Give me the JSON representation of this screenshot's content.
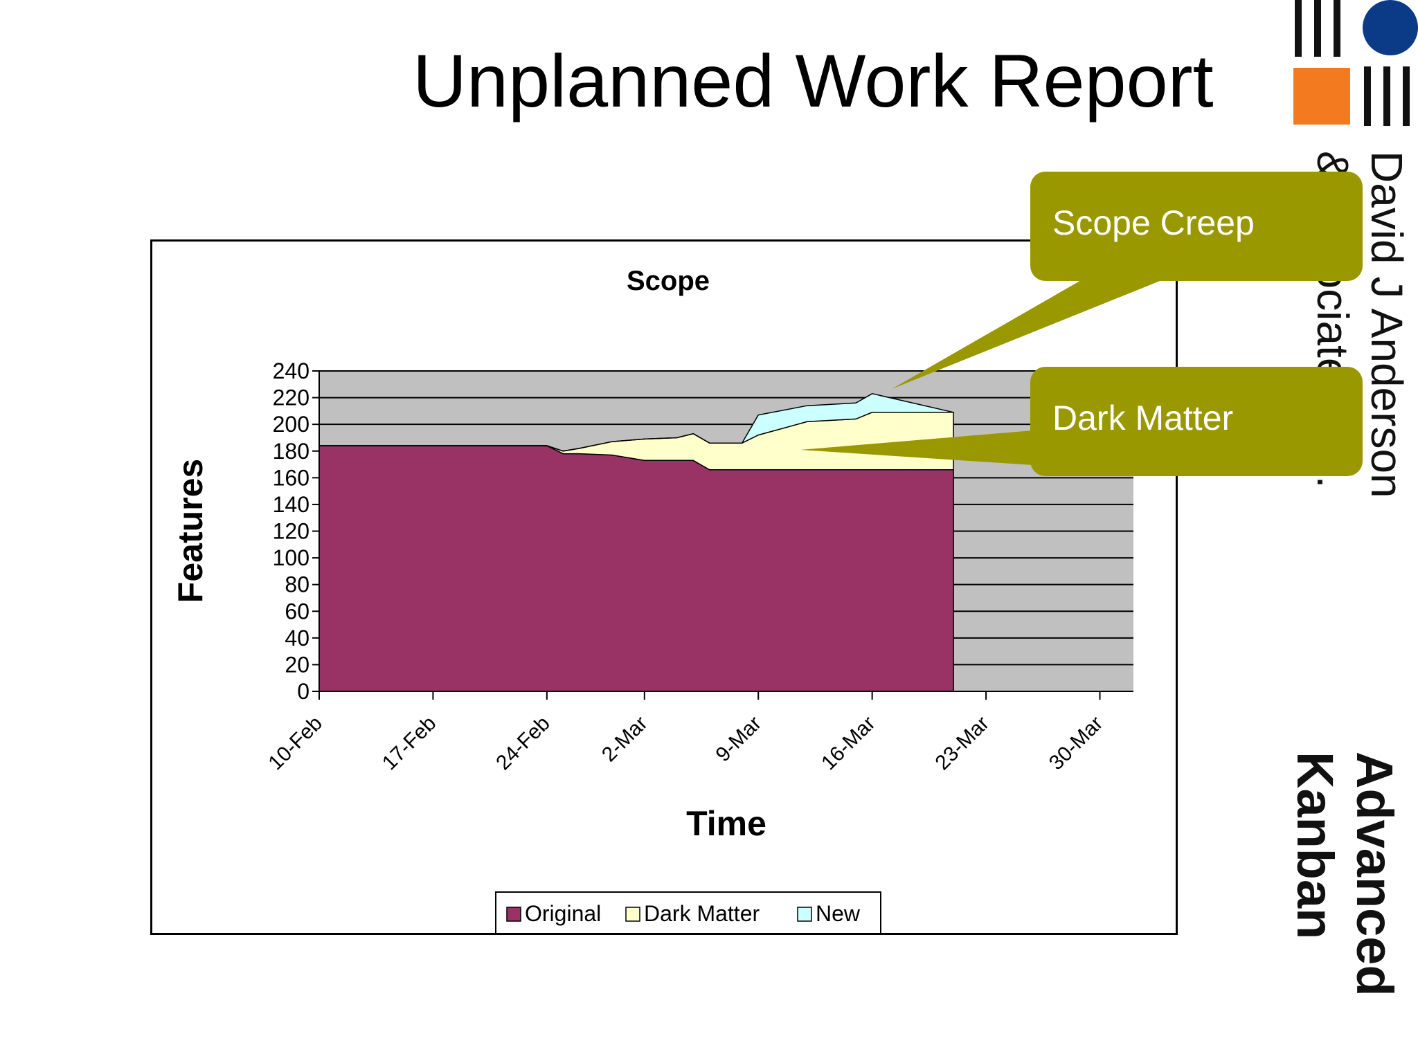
{
  "slide": {
    "title": "Unplanned Work Report"
  },
  "logo": {
    "company_text": "David J Anderson & Associates Inc.",
    "company_line1": "David J Anderson",
    "company_line2": "& Associates Inc.",
    "brand_line1": "Advanced",
    "brand_line2": "Kanban",
    "colors": {
      "circle": "#0b3a86",
      "square": "#f47a20",
      "bars": "#111111"
    }
  },
  "callouts": {
    "scope_creep": "Scope Creep",
    "dark_matter": "Dark Matter",
    "color": "#9a9800"
  },
  "chart_data": {
    "type": "area",
    "stacked": true,
    "title": "Scope",
    "xlabel": "Time",
    "ylabel": "Features",
    "ylim": [
      0,
      240
    ],
    "yticks": [
      "0",
      "20",
      "40",
      "60",
      "80",
      "100",
      "120",
      "140",
      "160",
      "180",
      "200",
      "220",
      "240"
    ],
    "xticks": [
      "10-Feb",
      "17-Feb",
      "24-Feb",
      "2-Mar",
      "9-Mar",
      "16-Mar",
      "23-Mar",
      "30-Mar"
    ],
    "xtick_dates": [
      "02-10",
      "02-17",
      "02-24",
      "03-02",
      "03-09",
      "03-16",
      "03-23",
      "03-30"
    ],
    "grid": true,
    "legend_position": "bottom",
    "plot_background": "#c0c0c0",
    "x": [
      "02-10",
      "02-24",
      "02-25",
      "02-26",
      "02-28",
      "03-01",
      "03-02",
      "03-04",
      "03-05",
      "03-06",
      "03-08",
      "03-09",
      "03-12",
      "03-15",
      "03-16",
      "03-21"
    ],
    "series": [
      {
        "name": "Original",
        "color": "#993366",
        "values": [
          184,
          184,
          178,
          178,
          177,
          175,
          173,
          173,
          173,
          166,
          166,
          166,
          166,
          166,
          166,
          166
        ]
      },
      {
        "name": "Dark Matter",
        "color": "#ffffcc",
        "values": [
          0,
          0,
          2,
          4,
          10,
          13,
          16,
          17,
          20,
          20,
          20,
          26,
          36,
          38,
          43,
          43
        ]
      },
      {
        "name": "New",
        "color": "#ccffff",
        "values": [
          0,
          0,
          0,
          0,
          0,
          0,
          0,
          0,
          0,
          0,
          0,
          15,
          12,
          12,
          14,
          0
        ]
      }
    ]
  }
}
